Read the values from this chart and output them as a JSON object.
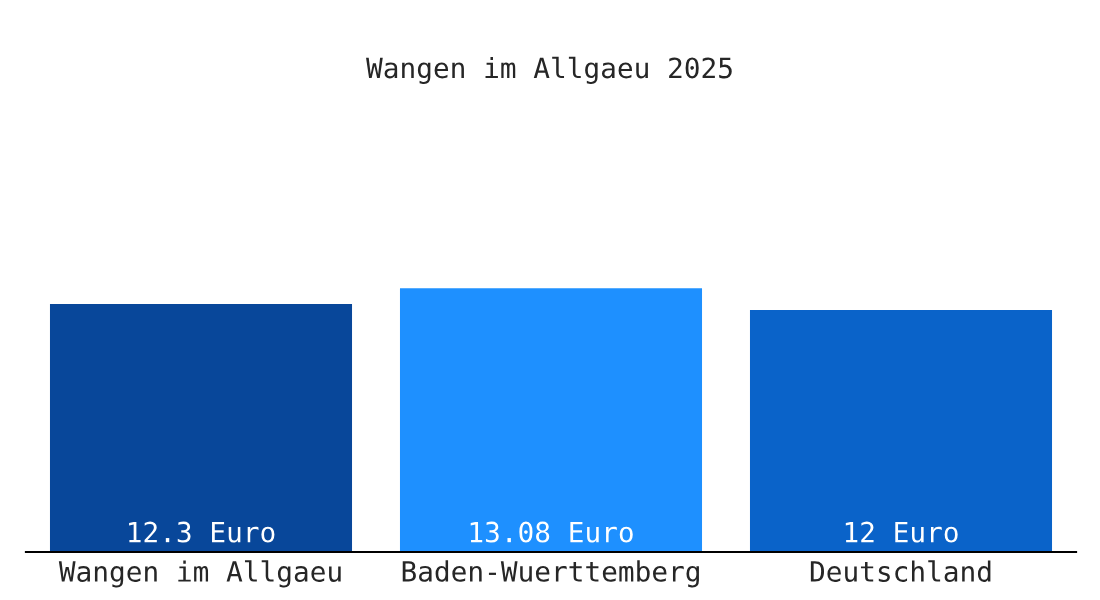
{
  "chart_data": {
    "type": "bar",
    "title": "Wangen im Allgaeu 2025",
    "categories": [
      "Wangen im Allgaeu",
      "Baden-Wuerttemberg",
      "Deutschland"
    ],
    "values": [
      12.3,
      13.08,
      12
    ],
    "value_labels": [
      "12.3 Euro",
      "13.08 Euro",
      "12 Euro"
    ],
    "colors": [
      "#08479a",
      "#1e90ff",
      "#0a63c9"
    ],
    "grid": false,
    "legend": false
  }
}
